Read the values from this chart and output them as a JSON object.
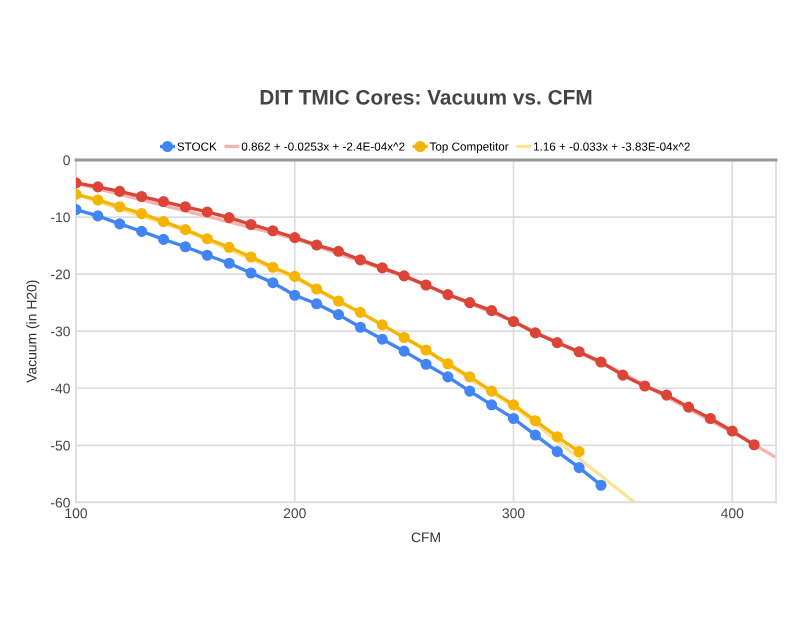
{
  "chart_data": {
    "type": "line",
    "title": "DIT TMIC Cores: Vacuum vs. CFM",
    "xlabel": "CFM",
    "ylabel": "Vacuum (in H20)",
    "xlim": [
      100,
      420
    ],
    "xticks": [
      100,
      200,
      300,
      400
    ],
    "ylim": [
      -60,
      0
    ],
    "yticks": [
      0,
      -10,
      -20,
      -30,
      -40,
      -50,
      -60
    ],
    "grid": true,
    "legend": "top",
    "marker": "circle",
    "x": [
      100,
      110,
      120,
      130,
      140,
      150,
      160,
      170,
      180,
      190,
      200,
      210,
      220,
      230,
      240,
      250,
      260,
      270,
      280,
      290,
      300,
      310,
      320,
      330,
      340,
      350,
      360,
      370,
      380,
      390,
      400,
      410
    ],
    "series": [
      {
        "name": "STOCK",
        "color": "#4285f4",
        "values": [
          -8.7,
          -9.8,
          -11.2,
          -12.5,
          -13.9,
          -15.2,
          -16.7,
          -18.1,
          -19.8,
          -21.5,
          -23.7,
          -25.2,
          -27.1,
          -29.3,
          -31.4,
          -33.5,
          -35.8,
          -38.0,
          -40.5,
          -42.9,
          -45.3,
          -48.2,
          -51.1,
          -53.9,
          -57.0,
          null,
          null,
          null,
          null,
          null,
          null,
          null
        ]
      },
      {
        "color": "#db4437",
        "values": [
          -4.0,
          -4.7,
          -5.5,
          -6.4,
          -7.3,
          -8.2,
          -9.1,
          -10.1,
          -11.3,
          -12.4,
          -13.6,
          -14.9,
          -16.0,
          -17.5,
          -18.9,
          -20.3,
          -21.9,
          -23.6,
          -25.0,
          -26.4,
          -28.3,
          -30.3,
          -32.0,
          -33.6,
          -35.4,
          -37.7,
          -39.6,
          -41.2,
          -43.3,
          -45.3,
          -47.5,
          -49.9
        ]
      },
      {
        "name": "0.862 + -0.0253x + -2.4E-04x^2",
        "color": "#f4b3ad",
        "marker": "none",
        "x": [
          100,
          150,
          200,
          250,
          300,
          350,
          400,
          420
        ],
        "values": [
          -4.1,
          -8.9,
          -13.8,
          -20.4,
          -28.3,
          -37.4,
          -47.7,
          -52.1
        ]
      },
      {
        "name": "Top Competitor",
        "color": "#f4b400",
        "values": [
          -6.0,
          -7.0,
          -8.2,
          -9.4,
          -10.8,
          -12.2,
          -13.8,
          -15.3,
          -17.0,
          -18.8,
          -20.4,
          -22.6,
          -24.7,
          -26.7,
          -28.9,
          -31.1,
          -33.3,
          -35.7,
          -38.0,
          -40.5,
          -42.9,
          -45.7,
          -48.5,
          -51.1,
          null,
          null,
          null,
          null,
          null,
          null,
          null,
          null
        ]
      },
      {
        "name": "1.16 + -0.033x + -3.83E-04x^2",
        "color": "#fbe49a",
        "marker": "none",
        "x": [
          100,
          150,
          200,
          250,
          300,
          355
        ],
        "values": [
          -6.0,
          -12.4,
          -20.7,
          -31.0,
          -43.2,
          -59.9
        ]
      }
    ]
  }
}
